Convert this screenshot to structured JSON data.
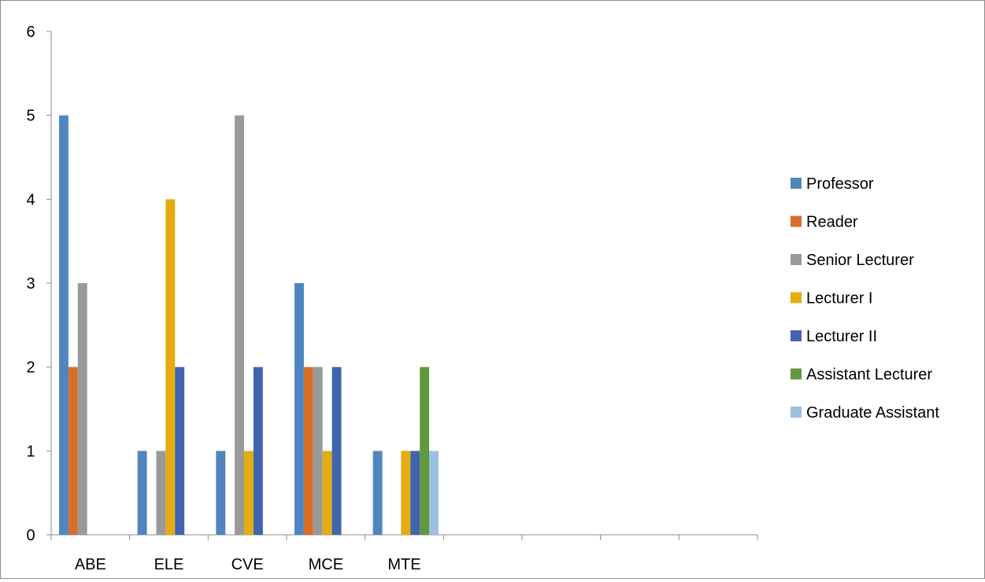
{
  "chart_data": {
    "type": "bar",
    "categories": [
      "ABE",
      "ELE",
      "CVE",
      "MCE",
      "MTE",
      "",
      "",
      "",
      ""
    ],
    "ylim": [
      0,
      6
    ],
    "yticks": [
      0,
      1,
      2,
      3,
      4,
      5,
      6
    ],
    "grid": false,
    "legend_position": "right",
    "series": [
      {
        "name": "Professor",
        "color": "#4f86c0",
        "values": [
          5,
          1,
          1,
          3,
          1,
          null,
          null,
          null,
          null
        ]
      },
      {
        "name": "Reader",
        "color": "#d96d2a",
        "values": [
          2,
          null,
          null,
          2,
          null,
          null,
          null,
          null,
          null
        ]
      },
      {
        "name": "Senior Lecturer",
        "color": "#999999",
        "values": [
          3,
          1,
          5,
          2,
          null,
          null,
          null,
          null,
          null
        ]
      },
      {
        "name": "Lecturer I",
        "color": "#e4ac0e",
        "values": [
          null,
          4,
          1,
          1,
          1,
          null,
          null,
          null,
          null
        ]
      },
      {
        "name": "Lecturer II",
        "color": "#3f65b0",
        "values": [
          null,
          2,
          2,
          2,
          1,
          null,
          null,
          null,
          null
        ]
      },
      {
        "name": "Assistant Lecturer",
        "color": "#62983d",
        "values": [
          null,
          null,
          null,
          null,
          2,
          null,
          null,
          null,
          null
        ]
      },
      {
        "name": "Graduate Assistant",
        "color": "#9cc0e4",
        "values": [
          null,
          null,
          null,
          null,
          1,
          null,
          null,
          null,
          null
        ]
      }
    ]
  }
}
